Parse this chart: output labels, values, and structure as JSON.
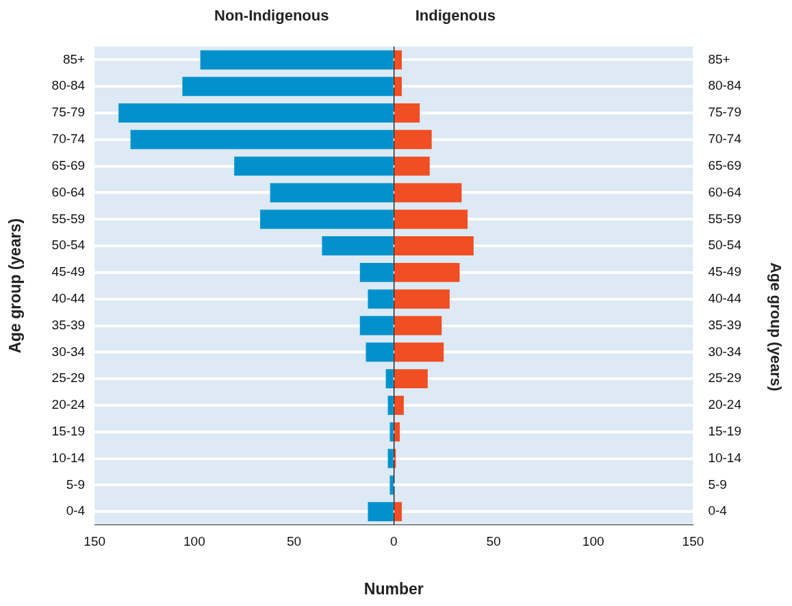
{
  "chart_data": {
    "type": "bar",
    "orientation": "horizontal",
    "stacked": true,
    "categories": [
      "85+",
      "80-84",
      "75-79",
      "70-74",
      "65-69",
      "60-64",
      "55-59",
      "50-54",
      "45-49",
      "40-44",
      "35-39",
      "30-34",
      "25-29",
      "20-24",
      "15-19",
      "10-14",
      "5-9",
      "0-4"
    ],
    "series": [
      {
        "name": "Non-Indigenous",
        "color": "#0091cd",
        "values": [
          -97,
          -106,
          -138,
          -132,
          -80,
          -62,
          -67,
          -36,
          -17,
          -13,
          -17,
          -14,
          -4,
          -3,
          -2,
          -3,
          -2,
          -13
        ]
      },
      {
        "name": "Indigenous",
        "color": "#f04e23",
        "values": [
          4,
          4,
          13,
          19,
          18,
          34,
          37,
          40,
          33,
          28,
          24,
          25,
          17,
          5,
          3,
          1,
          0,
          4
        ]
      }
    ],
    "xlim": [
      -150,
      150
    ],
    "xticks": [
      {
        "value": -150,
        "label": "150"
      },
      {
        "value": -100,
        "label": "100"
      },
      {
        "value": -50,
        "label": "50"
      },
      0,
      50,
      100,
      150
    ],
    "xlabel": "Number",
    "ylabel": "Age group (years)",
    "y2label": "Age group (years)",
    "grid": "y",
    "legend": false
  }
}
